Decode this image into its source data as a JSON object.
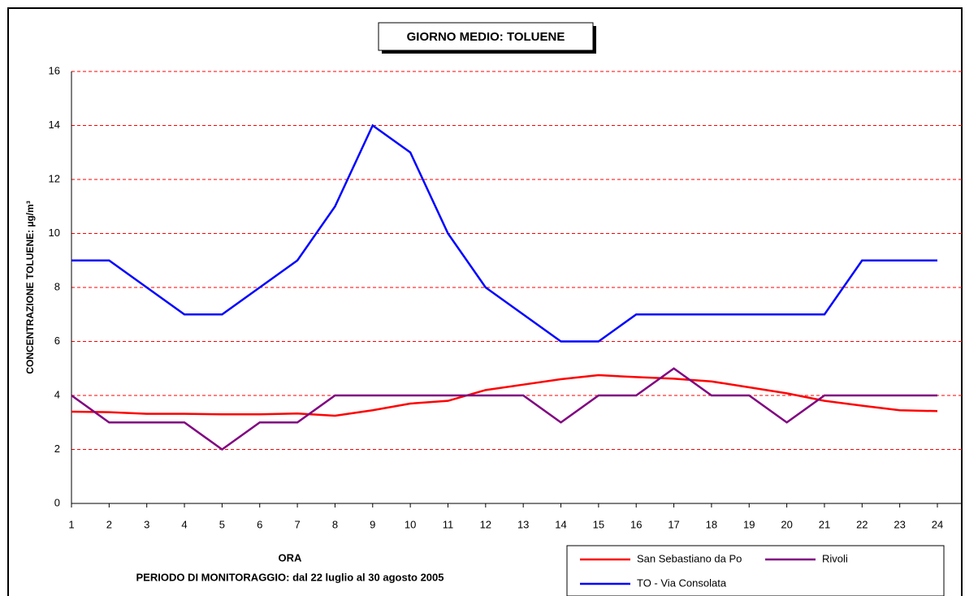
{
  "chart_data": {
    "type": "line",
    "title": "GIORNO MEDIO: TOLUENE",
    "y_label": "CONCENTRAZIONE TOLUENE: µg/m³",
    "x_label": "ORA",
    "subtitle": "PERIODO DI MONITORAGGIO: dal 22 luglio al 30 agosto 2005",
    "x": [
      1,
      2,
      3,
      4,
      5,
      6,
      7,
      8,
      9,
      10,
      11,
      12,
      13,
      14,
      15,
      16,
      17,
      18,
      19,
      20,
      21,
      22,
      23,
      24
    ],
    "xlim": [
      1,
      24
    ],
    "xticks": [
      1,
      2,
      3,
      4,
      5,
      6,
      7,
      8,
      9,
      10,
      11,
      12,
      13,
      14,
      15,
      16,
      17,
      18,
      19,
      20,
      21,
      22,
      23,
      24
    ],
    "ylim": [
      0,
      16
    ],
    "yticks": [
      0,
      2,
      4,
      6,
      8,
      10,
      12,
      14,
      16
    ],
    "grid": true,
    "series": [
      {
        "name": "San Sebastiano da Po",
        "color": "#ff0000",
        "values": [
          3.4,
          3.38,
          3.32,
          3.32,
          3.3,
          3.3,
          3.33,
          3.25,
          3.45,
          3.7,
          3.8,
          4.2,
          4.4,
          4.6,
          4.75,
          4.68,
          4.62,
          4.52,
          4.3,
          4.08,
          3.8,
          3.62,
          3.45,
          3.42
        ]
      },
      {
        "name": "Rivoli",
        "color": "#800080",
        "values": [
          4,
          3,
          3,
          3,
          2,
          3,
          3,
          4,
          4,
          4,
          4,
          4,
          4,
          3,
          4,
          4,
          5,
          4,
          4,
          3,
          4,
          4,
          4,
          4
        ]
      },
      {
        "name": "TO - Via Consolata",
        "color": "#0000ff",
        "values": [
          9,
          9,
          8,
          7,
          7,
          8,
          9,
          11,
          14,
          13,
          10,
          8,
          7,
          6,
          6,
          7,
          7,
          7,
          7,
          7,
          7,
          9,
          9,
          9
        ]
      }
    ]
  }
}
